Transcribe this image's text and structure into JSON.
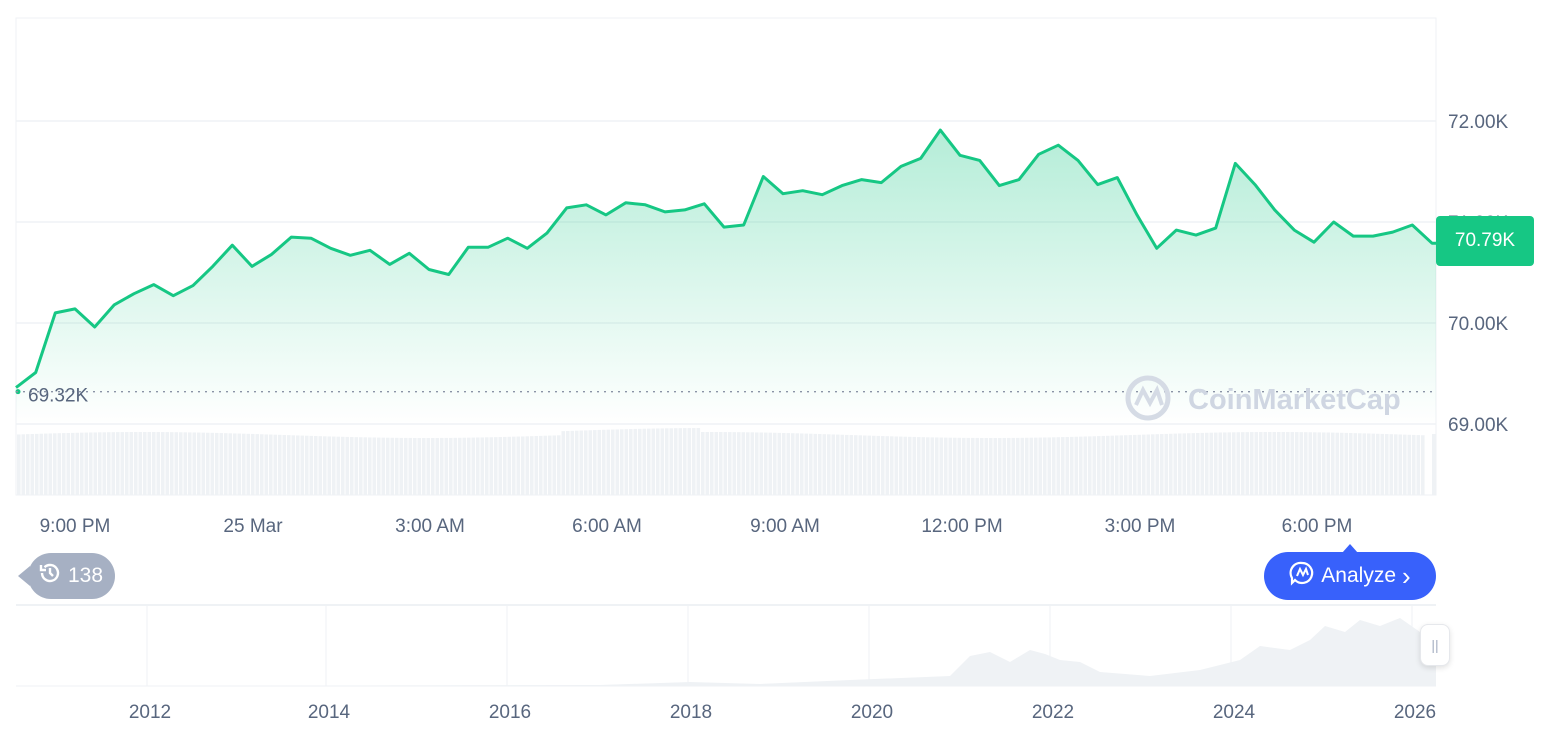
{
  "chart_data": {
    "type": "area",
    "y_axis": {
      "ticks": [
        "72.00K",
        "71.00K",
        "70.00K",
        "69.00K"
      ],
      "tick_values": [
        72000,
        71000,
        70000,
        69000
      ],
      "range": [
        68950,
        73000
      ],
      "side": "right"
    },
    "x_axis": {
      "ticks": [
        "9:00 PM",
        "25 Mar",
        "3:00 AM",
        "6:00 AM",
        "9:00 AM",
        "12:00 PM",
        "3:00 PM",
        "6:00 PM"
      ]
    },
    "grid": true,
    "line_color": "#16c784",
    "times": [
      "24 Mar 20:00",
      "20:20",
      "20:40",
      "21:00",
      "21:20",
      "21:40",
      "22:00",
      "22:20",
      "22:40",
      "23:00",
      "23:20",
      "23:40",
      "25 Mar 00:00",
      "00:20",
      "00:40",
      "01:00",
      "01:20",
      "01:40",
      "02:00",
      "02:20",
      "02:40",
      "03:00",
      "03:20",
      "03:40",
      "04:00",
      "04:20",
      "04:40",
      "05:00",
      "05:20",
      "05:40",
      "06:00",
      "06:20",
      "06:40",
      "07:00",
      "07:20",
      "07:40",
      "08:00",
      "08:20",
      "08:40",
      "09:00",
      "09:20",
      "09:40",
      "10:00",
      "10:20",
      "10:40",
      "11:00",
      "11:20",
      "11:40",
      "12:00",
      "12:20",
      "12:40",
      "13:00",
      "13:20",
      "13:40",
      "14:00",
      "14:20",
      "14:40",
      "15:00",
      "15:20",
      "15:40",
      "16:00",
      "16:20",
      "16:40",
      "17:00",
      "17:20",
      "17:40",
      "18:00",
      "18:20",
      "18:40",
      "19:00",
      "19:20",
      "19:40",
      "20:00"
    ],
    "values": [
      69360,
      69510,
      70100,
      70140,
      69960,
      70180,
      70290,
      70380,
      70270,
      70370,
      70560,
      70770,
      70560,
      70680,
      70850,
      70840,
      70740,
      70670,
      70720,
      70580,
      70690,
      70530,
      70480,
      70750,
      70750,
      70840,
      70740,
      70890,
      71140,
      71170,
      71070,
      71190,
      71170,
      71100,
      71120,
      71180,
      70950,
      70970,
      71450,
      71280,
      71310,
      71270,
      71360,
      71420,
      71390,
      71550,
      71630,
      71910,
      71660,
      71610,
      71360,
      71420,
      71670,
      71760,
      71610,
      71370,
      71440,
      71070,
      70740,
      70920,
      70870,
      70940,
      71580,
      71370,
      71120,
      70920,
      70800,
      71000,
      70860,
      70860,
      70900,
      70970,
      70790
    ],
    "reference_line": {
      "label": "69.32K",
      "value": 69320,
      "style": "dotted"
    },
    "current_price": {
      "label": "70.79K",
      "value": 70790,
      "color": "#16c784"
    },
    "volume_color": "#eff2f5",
    "navigator": {
      "x_ticks": [
        "2012",
        "2014",
        "2016",
        "2018",
        "2020",
        "2022",
        "2024",
        "2026"
      ]
    }
  },
  "watermark": "CoinMarketCap",
  "history_badge": {
    "icon": "history-icon",
    "count": "138"
  },
  "analyze_button": {
    "icon": "cmc-chat-icon",
    "label": "Analyze",
    "chevron": "›",
    "color": "#3861fb"
  },
  "navigator_handle": {
    "icon": "grip-icon",
    "glyph": "||"
  }
}
